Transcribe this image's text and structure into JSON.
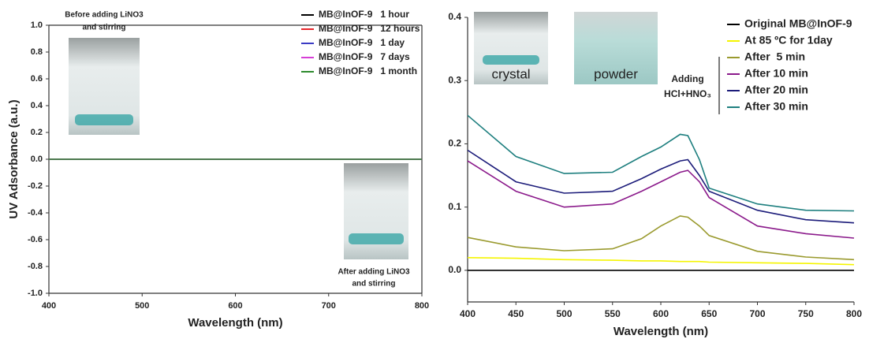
{
  "chart_data": [
    {
      "type": "line",
      "xlabel": "Wavelength (nm)",
      "ylabel": "UV Adsorbance (a.u.)",
      "annotations": [
        "Before adding LiNO3",
        "and stirring",
        "After adding LiNO3",
        "and stirring"
      ],
      "xlim": [
        400,
        800
      ],
      "xticks": [
        400,
        500,
        600,
        700,
        800
      ],
      "ylim": [
        -1.0,
        1.0
      ],
      "yticks": [
        {
          "value": 1.0,
          "label": "1.0"
        },
        0.8,
        0.6,
        0.4,
        0.2,
        {
          "value": 0,
          "label": "0.0"
        },
        -0.2,
        -0.4,
        -0.6,
        -0.8,
        {
          "value": -1.0,
          "label": "-1.0"
        }
      ],
      "x": [
        400,
        500,
        600,
        700,
        800
      ],
      "series": [
        {
          "name": "MB@InOF-9   1 hour",
          "color": "#000000",
          "values": [
            0,
            0,
            0,
            0,
            0
          ]
        },
        {
          "name": "MB@InOF-9   12 hours",
          "color": "#e8262b",
          "values": [
            0,
            0,
            0,
            0,
            0
          ]
        },
        {
          "name": "MB@InOF-9   1 day",
          "color": "#3b3bc4",
          "values": [
            0,
            0,
            0,
            0,
            0
          ]
        },
        {
          "name": "MB@InOF-9   7 days",
          "color": "#d63fd6",
          "values": [
            0,
            0,
            0,
            0,
            0
          ]
        },
        {
          "name": "MB@InOF-9   1 month",
          "color": "#2e8b2e",
          "values": [
            0,
            0,
            0,
            0,
            0
          ]
        }
      ]
    },
    {
      "type": "line",
      "xlabel": "Wavelength (nm)",
      "annotations": [
        "crystal",
        "powder",
        "Adding",
        "HCl+HNO₃"
      ],
      "xlim": [
        400,
        800
      ],
      "xticks": [
        400,
        450,
        500,
        550,
        600,
        650,
        700,
        750,
        800
      ],
      "ylim": [
        -0.05,
        0.4
      ],
      "yticks": [
        {
          "value": 0,
          "label": "0.0"
        },
        0.1,
        0.2,
        0.3,
        0.4
      ],
      "x": [
        400,
        450,
        500,
        550,
        580,
        600,
        620,
        628,
        640,
        650,
        700,
        750,
        800
      ],
      "series": [
        {
          "name": "Original MB@InOF-9",
          "color": "#000000",
          "values": [
            0,
            0,
            0,
            0,
            0,
            0,
            0,
            0,
            0,
            0,
            0,
            0,
            0
          ]
        },
        {
          "name": "At 85 ºC for 1day",
          "color": "#f5f500",
          "values": [
            0.02,
            0.019,
            0.017,
            0.016,
            0.015,
            0.015,
            0.014,
            0.014,
            0.014,
            0.013,
            0.012,
            0.011,
            0.009
          ]
        },
        {
          "name": "After  5 min",
          "color": "#9a9a2e",
          "values": [
            0.052,
            0.037,
            0.031,
            0.034,
            0.05,
            0.07,
            0.086,
            0.084,
            0.07,
            0.055,
            0.03,
            0.021,
            0.017
          ]
        },
        {
          "name": "After 10 min",
          "color": "#8b1a8b",
          "values": [
            0.173,
            0.125,
            0.1,
            0.105,
            0.125,
            0.14,
            0.155,
            0.158,
            0.14,
            0.115,
            0.07,
            0.058,
            0.051
          ]
        },
        {
          "name": "After 20 min",
          "color": "#1c1c7a",
          "values": [
            0.19,
            0.14,
            0.122,
            0.125,
            0.145,
            0.16,
            0.173,
            0.175,
            0.15,
            0.125,
            0.095,
            0.08,
            0.075
          ]
        },
        {
          "name": "After 30 min",
          "color": "#1e7f7f",
          "values": [
            0.245,
            0.18,
            0.153,
            0.155,
            0.18,
            0.195,
            0.215,
            0.213,
            0.175,
            0.13,
            0.105,
            0.095,
            0.094
          ]
        }
      ]
    }
  ]
}
